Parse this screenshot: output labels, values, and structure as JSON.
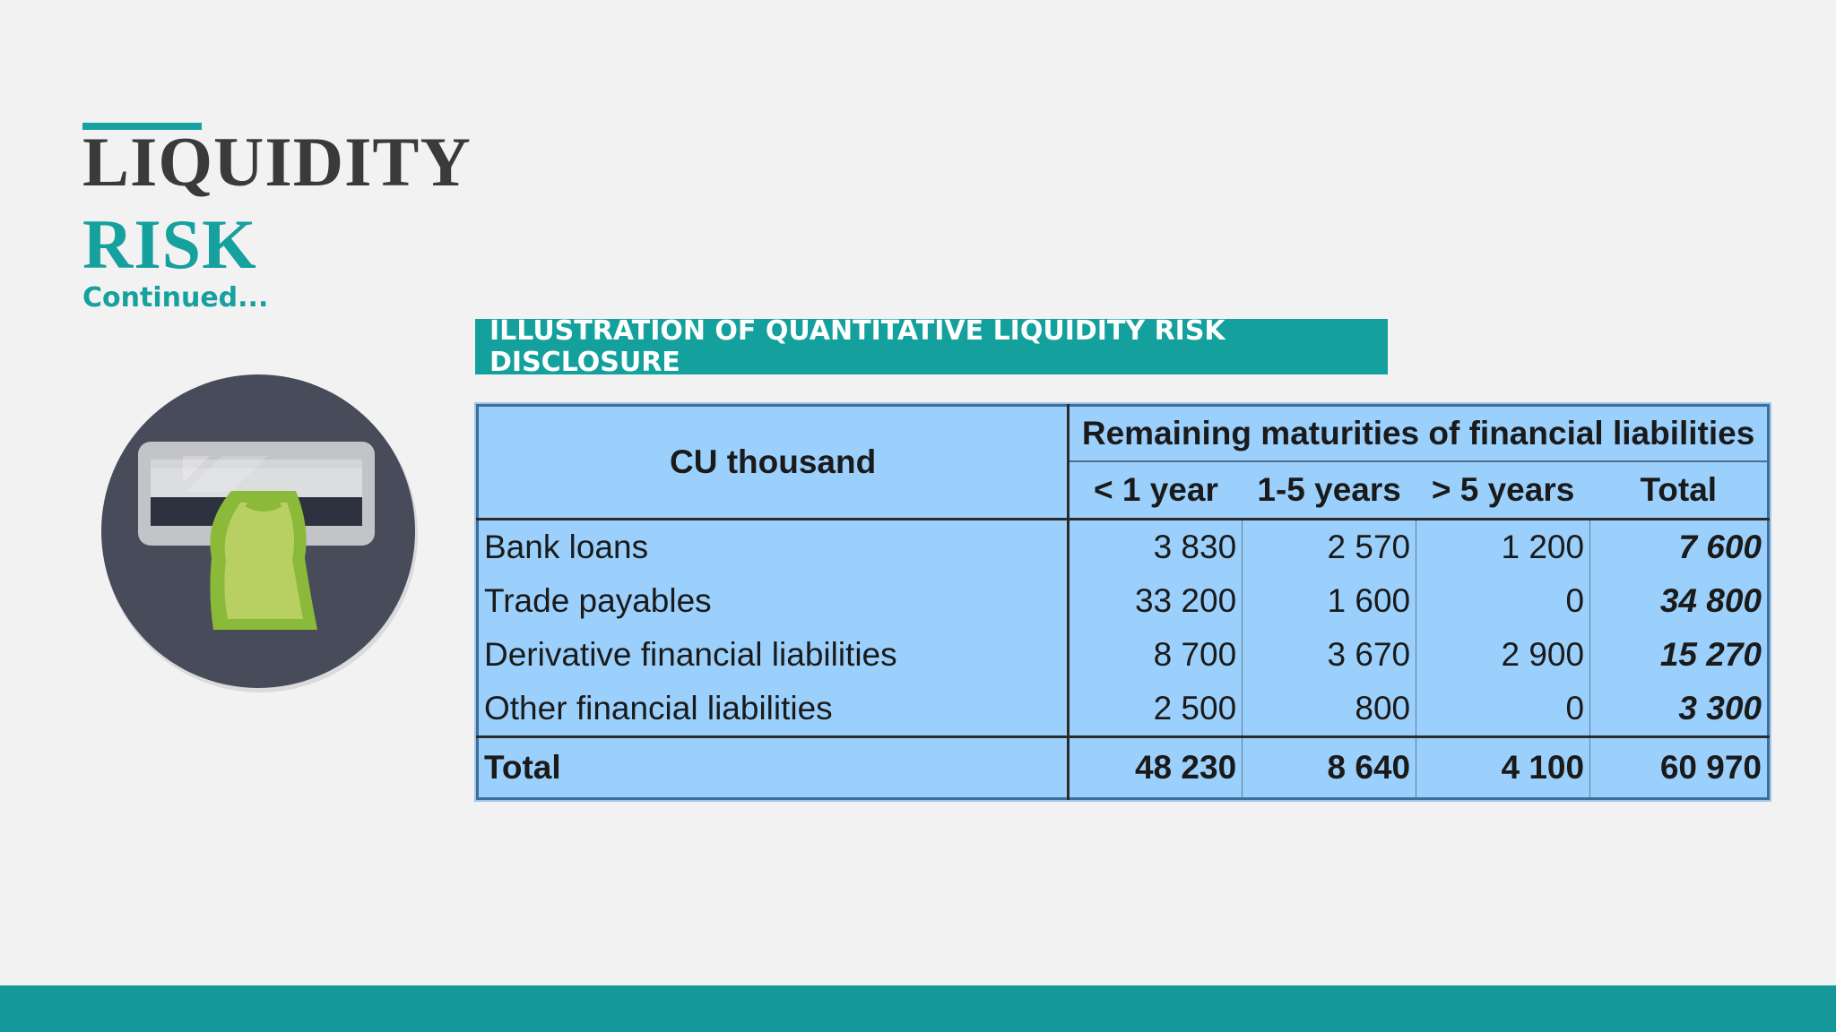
{
  "slide": {
    "title_line1": "LIQUIDITY",
    "title_line2": "RISK",
    "subtitle": "Continued...",
    "banner": "ILLUSTRATION OF QUANTITATIVE LIQUIDITY RISK DISCLOSURE",
    "icon": "atm-cash-withdrawal-icon",
    "colors": {
      "accent": "#16a09e",
      "title_dark": "#3a3a3a",
      "background": "#f2f2f3",
      "table_fill": "#9bd0fc",
      "footer": "#14989a"
    }
  },
  "table": {
    "corner_header": "CU thousand",
    "group_header": "Remaining maturities of financial liabilities",
    "columns": [
      "< 1 year",
      "1-5 years",
      "> 5 years",
      "Total"
    ],
    "rows": [
      {
        "label": "Bank loans",
        "values": [
          "3 830",
          "2 570",
          "1 200",
          "7 600"
        ]
      },
      {
        "label": "Trade payables",
        "values": [
          "33 200",
          "1 600",
          "0",
          "34 800"
        ]
      },
      {
        "label": "Derivative financial liabilities",
        "values": [
          "8 700",
          "3 670",
          "2 900",
          "15 270"
        ]
      },
      {
        "label": "Other financial liabilities",
        "values": [
          "2 500",
          "800",
          "0",
          "3 300"
        ]
      }
    ],
    "total_row": {
      "label": "Total",
      "values": [
        "48 230",
        "8 640",
        "4 100",
        "60 970"
      ]
    }
  }
}
